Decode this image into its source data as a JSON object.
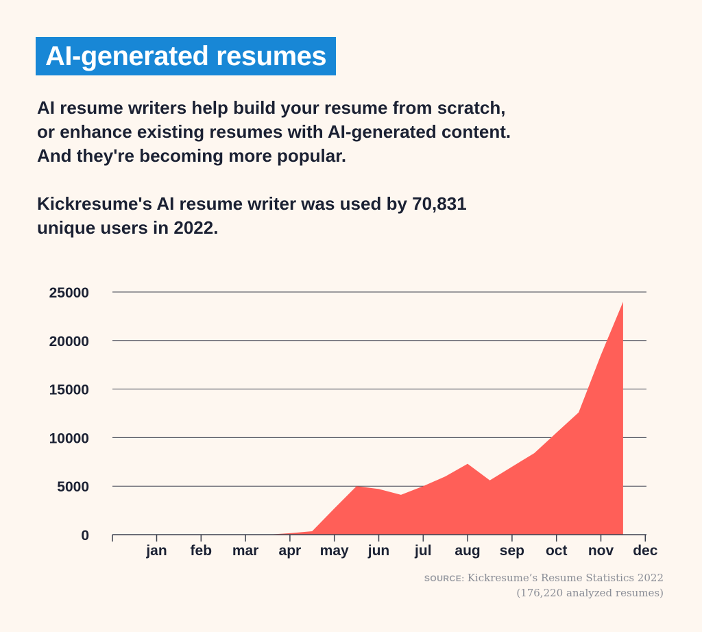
{
  "header": {
    "title": "AI-generated resumes",
    "intro_lines": [
      "AI resume writers help build your resume from scratch,",
      "or enhance existing resumes with AI-generated content.",
      "And they're becoming more popular."
    ],
    "stat_lines": [
      "Kickresume's AI resume writer was used by 70,831",
      "unique users in 2022."
    ]
  },
  "colors": {
    "background": "#fef7f0",
    "title_bg": "#1887d6",
    "area_fill": "#ff5f58",
    "text": "#1b2133",
    "grid": "#3a3f4d"
  },
  "chart_data": {
    "type": "area",
    "categories": [
      "jan",
      "feb",
      "mar",
      "apr",
      "may",
      "jun",
      "jul",
      "aug",
      "sep",
      "oct",
      "nov",
      "dec"
    ],
    "x": [
      1.5,
      2.5,
      3.5,
      4.0,
      4.5,
      5.0,
      5.5,
      6.0,
      6.5,
      7.0,
      7.5,
      8.0,
      8.5,
      9.0,
      9.5,
      10.0,
      10.5,
      11.0,
      11.5
    ],
    "values": [
      0,
      0,
      0,
      150,
      350,
      2700,
      5000,
      4700,
      4100,
      5000,
      6000,
      7300,
      5600,
      7000,
      8400,
      10500,
      12600,
      18500,
      24000
    ],
    "ylim": [
      0,
      25000
    ],
    "yticks": [
      0,
      5000,
      10000,
      15000,
      20000,
      25000
    ],
    "grid": true
  },
  "source": {
    "label": "SOURCE:",
    "line1": "Kickresume’s Resume Statistics 2022",
    "line2": "(176,220 analyzed resumes)"
  }
}
